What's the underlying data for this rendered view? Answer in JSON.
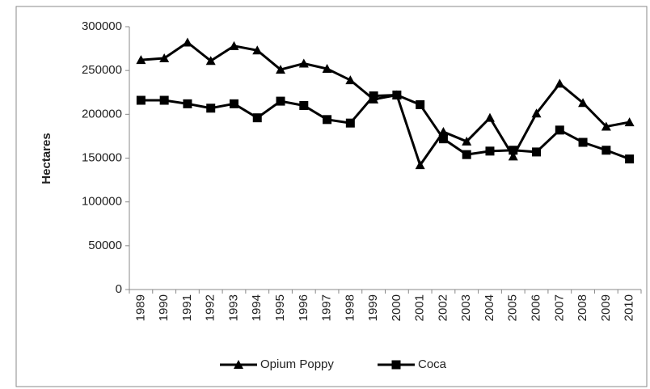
{
  "chart_data": {
    "type": "line",
    "y_label": "Hectares",
    "categories": [
      "1989",
      "1990",
      "1991",
      "1992",
      "1993",
      "1994",
      "1995",
      "1996",
      "1997",
      "1998",
      "1999",
      "2000",
      "2001",
      "2002",
      "2003",
      "2004",
      "2005",
      "2006",
      "2007",
      "2008",
      "2009",
      "2010"
    ],
    "series": [
      {
        "name": "Opium Poppy",
        "color": "#000000",
        "marker": "triangle",
        "values": [
          262000,
          264000,
          282000,
          261000,
          278000,
          273000,
          251000,
          258000,
          252000,
          239000,
          217000,
          222000,
          142000,
          180000,
          169000,
          196000,
          152000,
          201000,
          235000,
          213000,
          186000,
          191000
        ]
      },
      {
        "name": "Coca",
        "color": "#000000",
        "marker": "square",
        "values": [
          216000,
          216000,
          212000,
          207000,
          212000,
          196000,
          215000,
          210000,
          194000,
          190000,
          221000,
          222000,
          211000,
          172000,
          154000,
          158000,
          159000,
          157000,
          182000,
          168000,
          159000,
          149000
        ]
      }
    ],
    "ylim": [
      0,
      300000
    ],
    "yticks": [
      0,
      50000,
      100000,
      150000,
      200000,
      250000,
      300000
    ],
    "grid": false,
    "legend": "bottom"
  }
}
